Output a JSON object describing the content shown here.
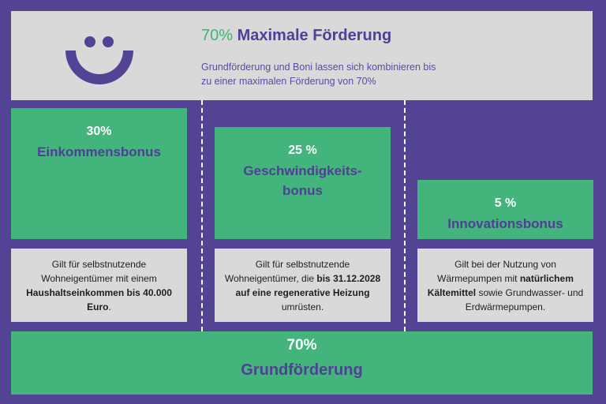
{
  "colors": {
    "background": "#524394",
    "panel_gray": "#d9d9d9",
    "green": "#43b47c",
    "purple_text": "#4f3f95",
    "green_text": "#3fb37a"
  },
  "header": {
    "logo_icon": "smiley-face-icon",
    "title_percent": "70%",
    "title_text": " Maximale Förderung",
    "subtitle": "Grundförderung und Boni lassen sich kombinieren bis\n zu einer maximalen Förderung von 70%"
  },
  "bonuses": [
    {
      "percent": "30%",
      "name": "Einkommensbonus",
      "desc_parts": [
        {
          "text": "Gilt für selbstnutzende Wohneigentümer mit einem ",
          "bold": false
        },
        {
          "text": "Haushaltseinkommen bis 40.000 Euro",
          "bold": true
        },
        {
          "text": ".",
          "bold": false
        }
      ]
    },
    {
      "percent": "25 %",
      "name": "Geschwindigkeits-\nbonus",
      "desc_parts": [
        {
          "text": "Gilt für selbstnutzende Wohneigentümer, die ",
          "bold": false
        },
        {
          "text": "bis 31.12.2028 auf eine regenerative Heizung",
          "bold": true
        },
        {
          "text": " umrüsten.",
          "bold": false
        }
      ]
    },
    {
      "percent": "5 %",
      "name": "Innovationsbonus",
      "desc_parts": [
        {
          "text": "Gilt bei der Nutzung von Wärmepumpen mit ",
          "bold": false
        },
        {
          "text": "natürlichem Kältemittel",
          "bold": true
        },
        {
          "text": " sowie Grundwasser- und Erdwärmepumpen.",
          "bold": false
        }
      ]
    }
  ],
  "base": {
    "percent": "70%",
    "name": "Grundförderung"
  }
}
